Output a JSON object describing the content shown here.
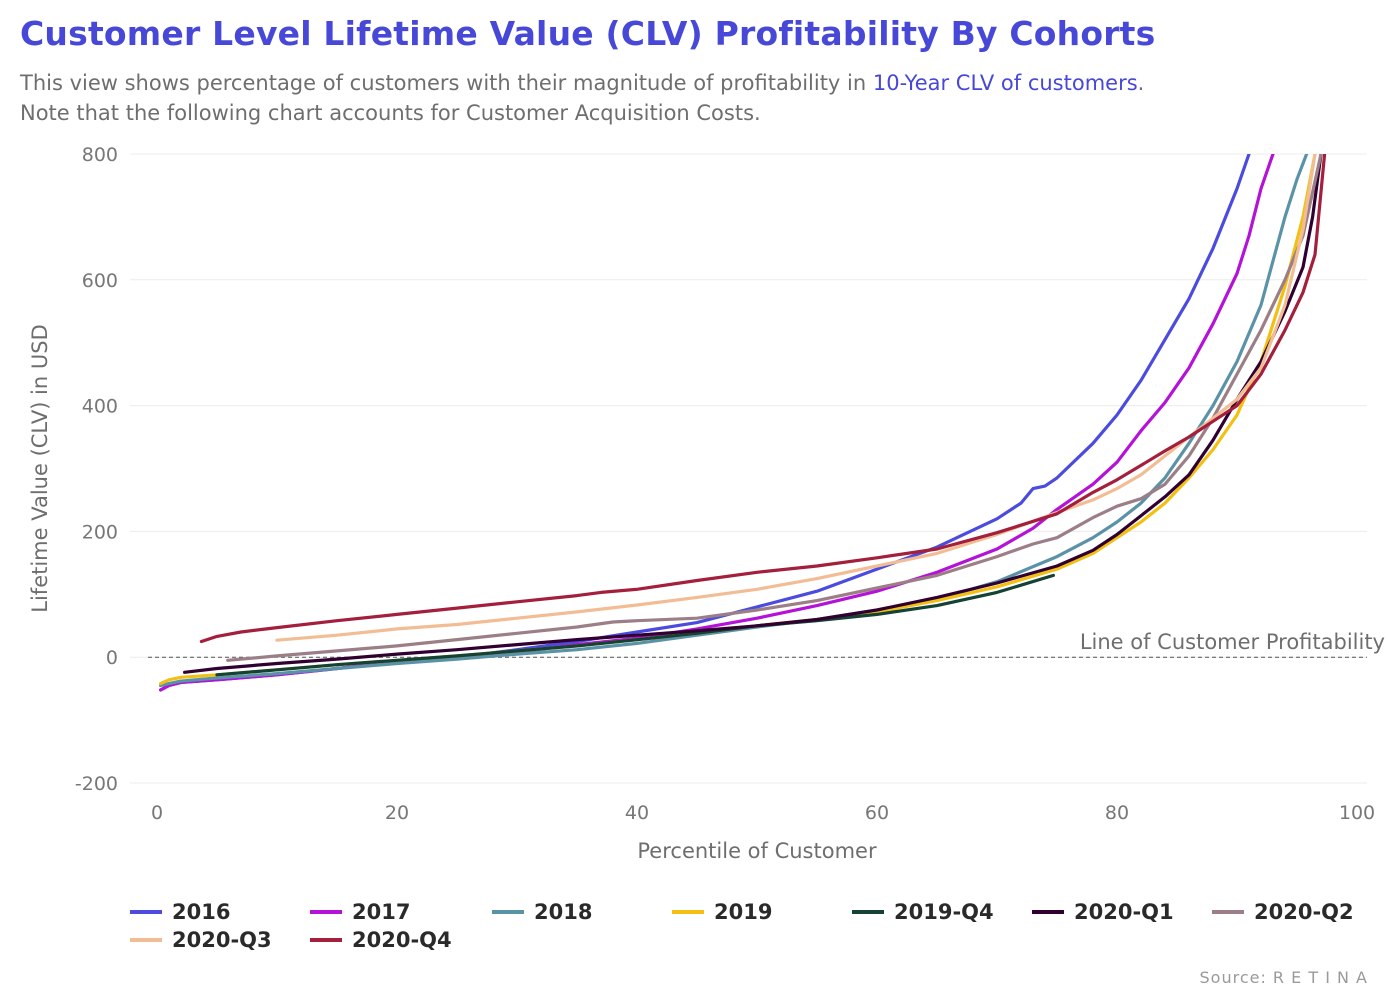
{
  "header": {
    "title": "Customer Level Lifetime Value (CLV) Profitability By Cohorts",
    "subtitle_pre": "This view shows percentage of customers with their magnitude of profitability in ",
    "subtitle_link": "10-Year CLV of customers",
    "subtitle_post": ". Note that the following chart accounts for Customer Acquisition Costs."
  },
  "source": "Source: R E T I N A",
  "chart_data": {
    "type": "line",
    "xlabel": "Percentile of Customer",
    "ylabel": "Lifetime Value (CLV) in USD",
    "xlim": [
      0,
      100
    ],
    "ylim": [
      -200,
      800
    ],
    "xticks": [
      0,
      20,
      40,
      60,
      80,
      100
    ],
    "yticks": [
      -200,
      0,
      200,
      400,
      600,
      800
    ],
    "reference_line": {
      "y": 0,
      "label": "Line of Customer Profitability",
      "style": "dashed"
    },
    "grid": "horizontal",
    "legend_position": "bottom",
    "series": [
      {
        "name": "2016",
        "color": "#4b4bdf",
        "points": [
          [
            0.3,
            -52
          ],
          [
            1,
            -45
          ],
          [
            2,
            -40
          ],
          [
            5,
            -36
          ],
          [
            10,
            -28
          ],
          [
            15,
            -18
          ],
          [
            20,
            -8
          ],
          [
            25,
            0
          ],
          [
            30,
            12
          ],
          [
            35,
            25
          ],
          [
            40,
            40
          ],
          [
            45,
            55
          ],
          [
            50,
            80
          ],
          [
            55,
            105
          ],
          [
            60,
            140
          ],
          [
            65,
            175
          ],
          [
            70,
            220
          ],
          [
            72,
            245
          ],
          [
            73,
            268
          ],
          [
            74,
            272
          ],
          [
            75,
            285
          ],
          [
            78,
            340
          ],
          [
            80,
            385
          ],
          [
            82,
            440
          ],
          [
            84,
            505
          ],
          [
            86,
            570
          ],
          [
            88,
            650
          ],
          [
            90,
            745
          ],
          [
            91,
            800
          ]
        ]
      },
      {
        "name": "2017",
        "color": "#b512d8",
        "points": [
          [
            0.3,
            -52
          ],
          [
            1,
            -45
          ],
          [
            2,
            -40
          ],
          [
            5,
            -36
          ],
          [
            10,
            -28
          ],
          [
            15,
            -18
          ],
          [
            20,
            -8
          ],
          [
            25,
            -2
          ],
          [
            30,
            8
          ],
          [
            35,
            20
          ],
          [
            40,
            30
          ],
          [
            45,
            45
          ],
          [
            50,
            62
          ],
          [
            55,
            82
          ],
          [
            60,
            105
          ],
          [
            65,
            135
          ],
          [
            70,
            172
          ],
          [
            73,
            205
          ],
          [
            75,
            235
          ],
          [
            78,
            275
          ],
          [
            80,
            310
          ],
          [
            82,
            360
          ],
          [
            84,
            405
          ],
          [
            86,
            460
          ],
          [
            88,
            530
          ],
          [
            90,
            610
          ],
          [
            91,
            670
          ],
          [
            92,
            745
          ],
          [
            93,
            800
          ]
        ]
      },
      {
        "name": "2018",
        "color": "#5a93a8",
        "points": [
          [
            0.3,
            -45
          ],
          [
            1,
            -42
          ],
          [
            2,
            -38
          ],
          [
            5,
            -33
          ],
          [
            10,
            -26
          ],
          [
            15,
            -18
          ],
          [
            20,
            -10
          ],
          [
            25,
            -3
          ],
          [
            30,
            5
          ],
          [
            35,
            12
          ],
          [
            40,
            22
          ],
          [
            45,
            35
          ],
          [
            50,
            48
          ],
          [
            55,
            60
          ],
          [
            60,
            75
          ],
          [
            65,
            92
          ],
          [
            70,
            120
          ],
          [
            75,
            160
          ],
          [
            78,
            190
          ],
          [
            80,
            215
          ],
          [
            82,
            245
          ],
          [
            84,
            285
          ],
          [
            86,
            340
          ],
          [
            88,
            400
          ],
          [
            90,
            470
          ],
          [
            92,
            560
          ],
          [
            93,
            630
          ],
          [
            94,
            700
          ],
          [
            95,
            760
          ],
          [
            95.8,
            800
          ]
        ]
      },
      {
        "name": "2019",
        "color": "#f2c012",
        "points": [
          [
            0.3,
            -42
          ],
          [
            1,
            -36
          ],
          [
            2,
            -32
          ],
          [
            5,
            -28
          ],
          [
            10,
            -20
          ],
          [
            15,
            -12
          ],
          [
            20,
            -5
          ],
          [
            25,
            2
          ],
          [
            30,
            10
          ],
          [
            35,
            18
          ],
          [
            40,
            28
          ],
          [
            45,
            38
          ],
          [
            50,
            50
          ],
          [
            55,
            60
          ],
          [
            60,
            72
          ],
          [
            65,
            90
          ],
          [
            70,
            112
          ],
          [
            75,
            140
          ],
          [
            78,
            165
          ],
          [
            80,
            190
          ],
          [
            82,
            215
          ],
          [
            84,
            245
          ],
          [
            86,
            285
          ],
          [
            88,
            330
          ],
          [
            90,
            385
          ],
          [
            92,
            470
          ],
          [
            94,
            590
          ],
          [
            95.5,
            700
          ],
          [
            96.5,
            800
          ]
        ]
      },
      {
        "name": "2019-Q4",
        "color": "#144234",
        "points": [
          [
            5,
            -28
          ],
          [
            10,
            -20
          ],
          [
            15,
            -12
          ],
          [
            20,
            -5
          ],
          [
            25,
            2
          ],
          [
            30,
            10
          ],
          [
            35,
            18
          ],
          [
            40,
            28
          ],
          [
            45,
            38
          ],
          [
            50,
            50
          ],
          [
            55,
            58
          ],
          [
            60,
            68
          ],
          [
            65,
            82
          ],
          [
            70,
            103
          ],
          [
            74.7,
            130
          ]
        ]
      },
      {
        "name": "2020-Q1",
        "color": "#300030",
        "points": [
          [
            2.3,
            -24
          ],
          [
            5,
            -18
          ],
          [
            10,
            -10
          ],
          [
            15,
            -3
          ],
          [
            20,
            5
          ],
          [
            25,
            12
          ],
          [
            30,
            20
          ],
          [
            35,
            28
          ],
          [
            40,
            35
          ],
          [
            45,
            42
          ],
          [
            50,
            50
          ],
          [
            55,
            60
          ],
          [
            60,
            75
          ],
          [
            65,
            95
          ],
          [
            70,
            118
          ],
          [
            75,
            145
          ],
          [
            78,
            170
          ],
          [
            80,
            195
          ],
          [
            82,
            225
          ],
          [
            84,
            255
          ],
          [
            86,
            290
          ],
          [
            88,
            345
          ],
          [
            90,
            410
          ],
          [
            92,
            470
          ],
          [
            94,
            550
          ],
          [
            95.5,
            620
          ],
          [
            96.3,
            700
          ],
          [
            97,
            800
          ]
        ]
      },
      {
        "name": "2020-Q2",
        "color": "#9c7f86",
        "points": [
          [
            5.9,
            -5
          ],
          [
            10,
            2
          ],
          [
            15,
            10
          ],
          [
            20,
            18
          ],
          [
            25,
            28
          ],
          [
            30,
            38
          ],
          [
            35,
            48
          ],
          [
            38,
            56
          ],
          [
            40,
            58
          ],
          [
            45,
            62
          ],
          [
            50,
            75
          ],
          [
            55,
            90
          ],
          [
            60,
            110
          ],
          [
            65,
            130
          ],
          [
            70,
            160
          ],
          [
            73,
            180
          ],
          [
            75,
            190
          ],
          [
            78,
            222
          ],
          [
            80,
            240
          ],
          [
            82,
            252
          ],
          [
            84,
            275
          ],
          [
            86,
            320
          ],
          [
            88,
            380
          ],
          [
            90,
            450
          ],
          [
            92,
            520
          ],
          [
            94,
            600
          ],
          [
            95.5,
            670
          ],
          [
            97,
            800
          ]
        ]
      },
      {
        "name": "2020-Q3",
        "color": "#f2bd95",
        "points": [
          [
            10,
            27
          ],
          [
            15,
            35
          ],
          [
            20,
            45
          ],
          [
            25,
            52
          ],
          [
            30,
            62
          ],
          [
            35,
            72
          ],
          [
            40,
            83
          ],
          [
            45,
            95
          ],
          [
            50,
            108
          ],
          [
            55,
            125
          ],
          [
            60,
            145
          ],
          [
            65,
            165
          ],
          [
            70,
            195
          ],
          [
            75,
            230
          ],
          [
            78,
            250
          ],
          [
            80,
            268
          ],
          [
            82,
            290
          ],
          [
            84,
            320
          ],
          [
            86,
            350
          ],
          [
            88,
            380
          ],
          [
            90,
            410
          ],
          [
            92,
            460
          ],
          [
            94,
            560
          ],
          [
            95.5,
            680
          ],
          [
            96.5,
            800
          ]
        ]
      },
      {
        "name": "2020-Q4",
        "color": "#a31f3c",
        "points": [
          [
            3.7,
            25
          ],
          [
            5,
            33
          ],
          [
            7,
            40
          ],
          [
            10,
            47
          ],
          [
            15,
            58
          ],
          [
            20,
            68
          ],
          [
            25,
            78
          ],
          [
            30,
            88
          ],
          [
            35,
            98
          ],
          [
            37,
            103
          ],
          [
            40,
            108
          ],
          [
            45,
            122
          ],
          [
            50,
            135
          ],
          [
            55,
            145
          ],
          [
            60,
            158
          ],
          [
            65,
            172
          ],
          [
            70,
            198
          ],
          [
            75,
            228
          ],
          [
            78,
            262
          ],
          [
            80,
            282
          ],
          [
            82,
            305
          ],
          [
            84,
            328
          ],
          [
            86,
            350
          ],
          [
            88,
            375
          ],
          [
            90,
            400
          ],
          [
            92,
            450
          ],
          [
            94,
            520
          ],
          [
            95.5,
            580
          ],
          [
            96.5,
            640
          ],
          [
            97.3,
            800
          ]
        ]
      }
    ]
  }
}
